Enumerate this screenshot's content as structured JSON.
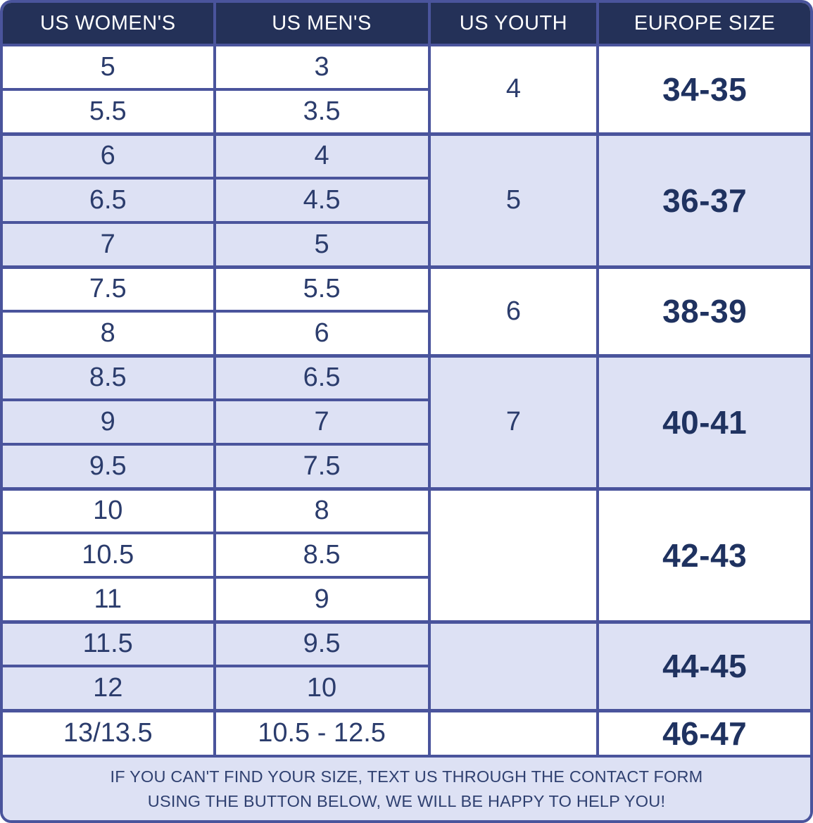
{
  "colors": {
    "border": "#4a549c",
    "header_bg": "#243158",
    "header_text": "#ffffff",
    "row_alt_bg": "#dde1f4",
    "row_bg": "#ffffff",
    "cell_text": "#2b3c6c",
    "europe_text": "#1f3260",
    "footer_text": "#2f4070"
  },
  "table": {
    "headers": [
      "US WOMEN'S",
      "US MEN'S",
      "US YOUTH",
      "EUROPE SIZE"
    ],
    "groups": [
      {
        "shade": "white",
        "women": [
          "5",
          "5.5"
        ],
        "men": [
          "3",
          "3.5"
        ],
        "youth": "4",
        "europe": "34-35"
      },
      {
        "shade": "lavender",
        "women": [
          "6",
          "6.5",
          "7"
        ],
        "men": [
          "4",
          "4.5",
          "5"
        ],
        "youth": "5",
        "europe": "36-37"
      },
      {
        "shade": "white",
        "women": [
          "7.5",
          "8"
        ],
        "men": [
          "5.5",
          "6"
        ],
        "youth": "6",
        "europe": "38-39"
      },
      {
        "shade": "lavender",
        "women": [
          "8.5",
          "9",
          "9.5"
        ],
        "men": [
          "6.5",
          "7",
          "7.5"
        ],
        "youth": "7",
        "europe": "40-41"
      },
      {
        "shade": "white",
        "women": [
          "10",
          "10.5",
          "11"
        ],
        "men": [
          "8",
          "8.5",
          "9"
        ],
        "youth": "",
        "europe": "42-43"
      },
      {
        "shade": "lavender",
        "women": [
          "11.5",
          "12"
        ],
        "men": [
          "9.5",
          "10"
        ],
        "youth": "",
        "europe": "44-45"
      },
      {
        "shade": "white",
        "women": [
          "13/13.5"
        ],
        "men": [
          "10.5 - 12.5"
        ],
        "youth": "",
        "europe": "46-47"
      }
    ],
    "footer": {
      "line1": "IF YOU CAN'T FIND YOUR SIZE, TEXT US THROUGH THE CONTACT FORM",
      "line2": "USING THE BUTTON BELOW, WE WILL BE HAPPY TO HELP YOU!"
    }
  }
}
